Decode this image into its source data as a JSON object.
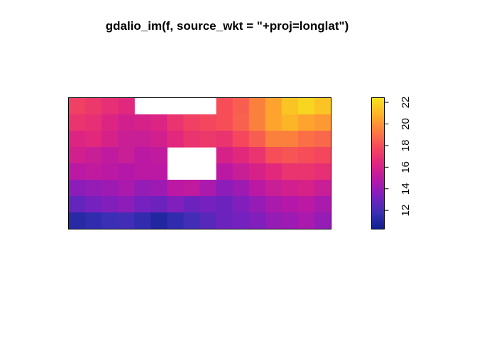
{
  "chart_data": {
    "type": "heatmap",
    "title": "gdalio_im(f, source_wkt = \"+proj=longlat\")",
    "xlabel": "",
    "ylabel": "",
    "colorbar": {
      "min": 10.3,
      "max": 22.4,
      "ticks": [
        12,
        14,
        16,
        18,
        20,
        22
      ],
      "tick_labels": [
        "12",
        "14",
        "16",
        "18",
        "20",
        "22"
      ],
      "colors": [
        "#0D1F8C",
        "#3A2FB5",
        "#7A20C0",
        "#B618A8",
        "#E0257F",
        "#F5485C",
        "#FC7C3F",
        "#FDB128",
        "#F6E21E"
      ]
    },
    "grid_cols": 16,
    "grid_rows": 8,
    "values": [
      [
        17.5,
        17.2,
        16.8,
        16.5,
        null,
        null,
        null,
        null,
        null,
        18.0,
        18.5,
        19.5,
        20.5,
        21.5,
        22.0,
        21.5
      ],
      [
        17.0,
        16.8,
        16.2,
        15.8,
        16.0,
        16.2,
        17.0,
        17.5,
        17.8,
        18.0,
        18.6,
        19.5,
        20.5,
        21.0,
        20.5,
        20.2
      ],
      [
        16.2,
        16.5,
        16.0,
        15.5,
        15.5,
        15.8,
        16.5,
        17.0,
        17.2,
        17.0,
        17.8,
        18.5,
        19.5,
        19.5,
        19.0,
        18.8
      ],
      [
        15.8,
        15.5,
        15.2,
        15.5,
        15.0,
        15.2,
        null,
        null,
        null,
        16.0,
        16.5,
        17.0,
        18.0,
        18.2,
        18.0,
        17.8
      ],
      [
        15.0,
        15.2,
        15.0,
        14.8,
        15.0,
        15.0,
        null,
        null,
        null,
        15.0,
        15.5,
        16.0,
        16.5,
        17.0,
        17.0,
        16.8
      ],
      [
        13.8,
        14.0,
        14.2,
        14.5,
        14.0,
        14.2,
        15.0,
        15.2,
        14.5,
        13.8,
        14.2,
        15.0,
        15.5,
        15.8,
        16.0,
        15.5
      ],
      [
        12.8,
        13.2,
        13.5,
        13.8,
        13.2,
        13.0,
        13.5,
        13.0,
        13.2,
        13.0,
        13.5,
        14.0,
        14.5,
        14.8,
        15.0,
        14.5
      ],
      [
        11.2,
        11.5,
        11.8,
        12.0,
        11.5,
        11.0,
        11.5,
        12.0,
        12.5,
        13.0,
        13.2,
        13.5,
        14.0,
        14.2,
        14.5,
        14.0
      ]
    ]
  }
}
